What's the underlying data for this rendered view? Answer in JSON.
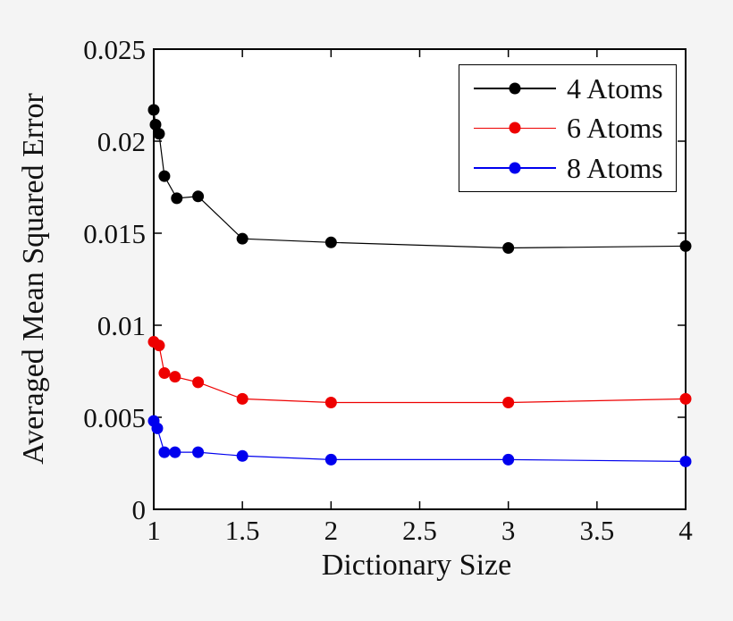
{
  "figure": {
    "background_color": "#f4f4f4",
    "plot_background_color": "#ffffff",
    "axis_color": "#000000"
  },
  "chart_data": {
    "type": "line",
    "title": "",
    "xlabel": "Dictionary Size",
    "ylabel": "Averaged Mean Squared Error",
    "xlim": [
      1,
      4
    ],
    "ylim": [
      0,
      0.025
    ],
    "xticks": [
      1,
      1.5,
      2,
      2.5,
      3,
      3.5,
      4
    ],
    "xtick_labels": [
      "1",
      "1.5",
      "2",
      "2.5",
      "3",
      "3.5",
      "4"
    ],
    "yticks": [
      0,
      0.005,
      0.01,
      0.015,
      0.02,
      0.025
    ],
    "ytick_labels": [
      "0",
      "0.005",
      "0.01",
      "0.015",
      "0.02",
      "0.025"
    ],
    "grid": false,
    "legend_position": "top-right",
    "marker": "circle",
    "series": [
      {
        "name": "4 Atoms",
        "color": "#000000",
        "points": [
          [
            1.0,
            0.0217
          ],
          [
            1.01,
            0.0209
          ],
          [
            1.03,
            0.0204
          ],
          [
            1.06,
            0.0181
          ],
          [
            1.13,
            0.0169
          ],
          [
            1.25,
            0.017
          ],
          [
            1.5,
            0.0147
          ],
          [
            2.0,
            0.0145
          ],
          [
            3.0,
            0.0142
          ],
          [
            4.0,
            0.0143
          ]
        ]
      },
      {
        "name": "6 Atoms",
        "color": "#ee0000",
        "points": [
          [
            1.0,
            0.0091
          ],
          [
            1.03,
            0.0089
          ],
          [
            1.06,
            0.0074
          ],
          [
            1.12,
            0.0072
          ],
          [
            1.25,
            0.0069
          ],
          [
            1.5,
            0.006
          ],
          [
            2.0,
            0.0058
          ],
          [
            3.0,
            0.0058
          ],
          [
            4.0,
            0.006
          ]
        ]
      },
      {
        "name": "8 Atoms",
        "color": "#0000ee",
        "points": [
          [
            1.0,
            0.0048
          ],
          [
            1.02,
            0.0044
          ],
          [
            1.06,
            0.0031
          ],
          [
            1.12,
            0.0031
          ],
          [
            1.25,
            0.0031
          ],
          [
            1.5,
            0.0029
          ],
          [
            2.0,
            0.0027
          ],
          [
            3.0,
            0.0027
          ],
          [
            4.0,
            0.0026
          ]
        ]
      }
    ]
  }
}
